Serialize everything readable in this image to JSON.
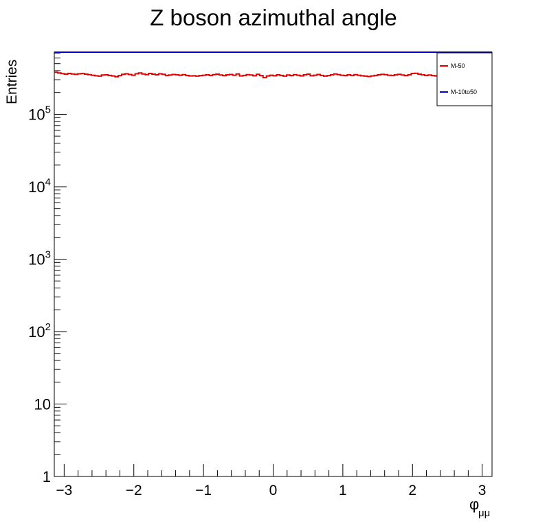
{
  "chart_data": {
    "type": "line",
    "title": "Z boson azimuthal angle",
    "ylabel": "Entries",
    "xlabel": "φ",
    "xlabel_sub": "μμ",
    "x_range": [
      -3.1416,
      3.1416
    ],
    "y_range": [
      1,
      720000
    ],
    "y_scale": "log",
    "x_ticks": [
      {
        "value": -3,
        "label": "−3"
      },
      {
        "value": -2,
        "label": "−2"
      },
      {
        "value": -1,
        "label": "−1"
      },
      {
        "value": 0,
        "label": "0"
      },
      {
        "value": 1,
        "label": "1"
      },
      {
        "value": 2,
        "label": "2"
      },
      {
        "value": 3,
        "label": "3"
      }
    ],
    "y_ticks": [
      {
        "value": 1,
        "label": "1",
        "exp": ""
      },
      {
        "value": 10,
        "label": "10",
        "exp": ""
      },
      {
        "value": 100,
        "label": "10",
        "exp": "2"
      },
      {
        "value": 1000,
        "label": "10",
        "exp": "3"
      },
      {
        "value": 10000,
        "label": "10",
        "exp": "4"
      },
      {
        "value": 100000,
        "label": "10",
        "exp": "5"
      }
    ],
    "legend_position": "top-right",
    "series": [
      {
        "name": "M-50",
        "color": "#e00000",
        "style": "step",
        "values": [
          380000,
          372000,
          364000,
          358000,
          366000,
          360000,
          356000,
          362000,
          365000,
          358000,
          352000,
          346000,
          340000,
          336000,
          348000,
          350000,
          344000,
          338000,
          330000,
          342000,
          356000,
          362000,
          354000,
          346000,
          362000,
          372000,
          360000,
          352000,
          366000,
          358000,
          350000,
          362000,
          356000,
          344000,
          348000,
          354000,
          350000,
          346000,
          352000,
          344000,
          338000,
          340000,
          336000,
          342000,
          346000,
          350000,
          344000,
          352000,
          358000,
          348000,
          342000,
          350000,
          354000,
          346000,
          360000,
          338000,
          344000,
          352000,
          348000,
          340000,
          356000,
          342000,
          320000,
          338000,
          346000,
          340000,
          350000,
          344000,
          336000,
          348000,
          342000,
          352000,
          346000,
          338000,
          350000,
          358000,
          340000,
          346000,
          354000,
          344000,
          336000,
          342000,
          350000,
          360000,
          352000,
          346000,
          342000,
          350000,
          344000,
          352000,
          346000,
          340000,
          336000,
          332000,
          338000,
          344000,
          350000,
          356000,
          352000,
          346000,
          344000,
          350000,
          356000,
          348000,
          342000,
          350000,
          366000,
          368000,
          358000,
          350000,
          344000,
          348000,
          342000,
          338000,
          344000,
          348000,
          346000,
          338000,
          344000,
          350000,
          346000,
          340000,
          338000,
          344000,
          350000,
          346000,
          342000,
          338000,
          344000,
          348000
        ]
      },
      {
        "name": "M-10to50",
        "color": "#0000d0",
        "style": "step",
        "value_constant": 720000
      }
    ]
  }
}
